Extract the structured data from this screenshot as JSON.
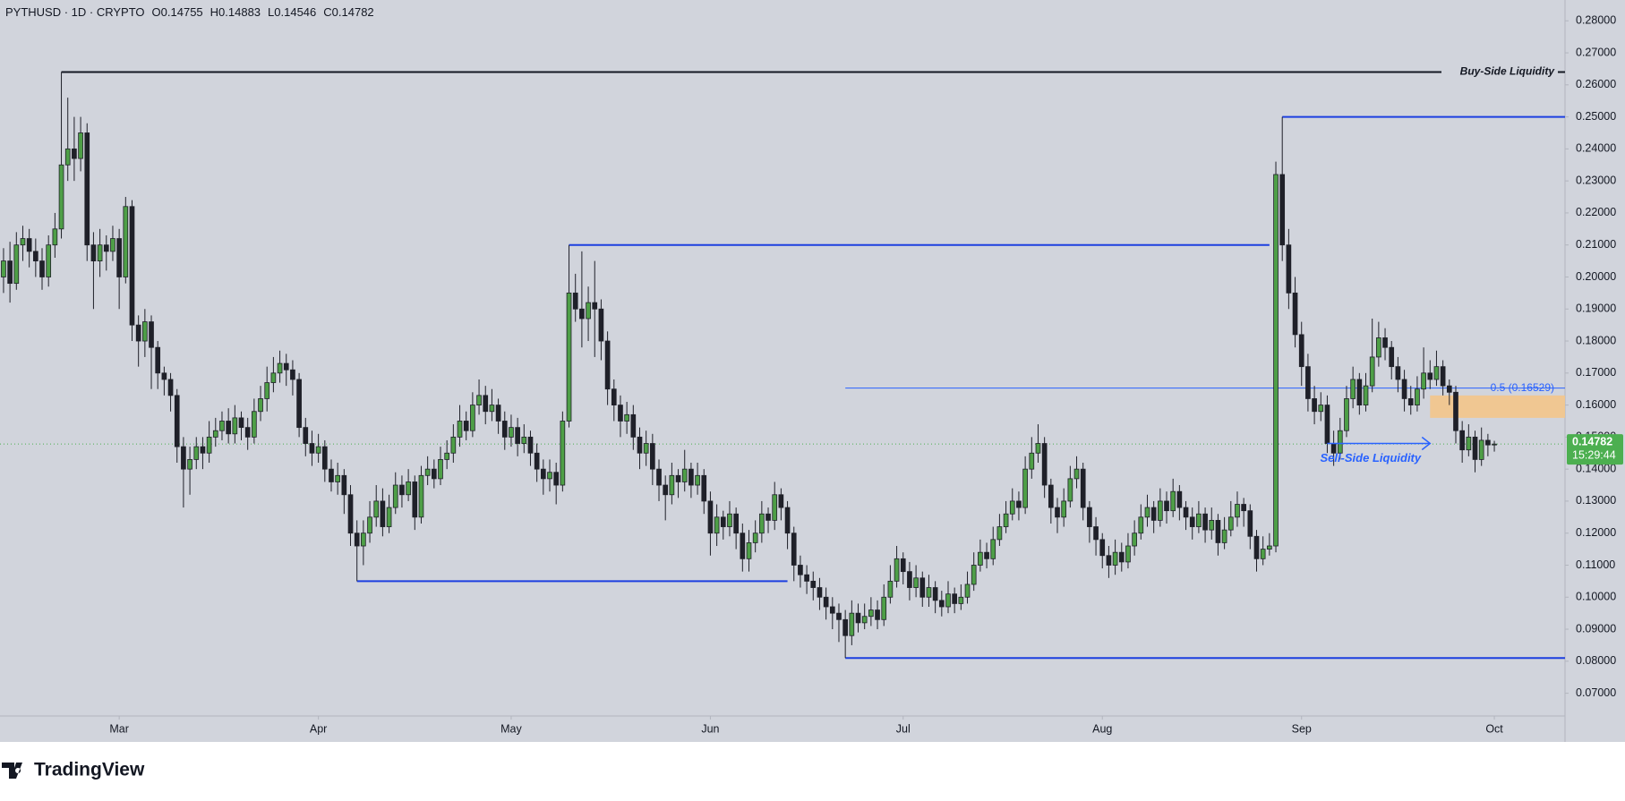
{
  "chart_data": {
    "type": "candlestick",
    "symbol_line": "PYTHUSD · 1D · CRYPTO",
    "ohlc_labels": [
      "O0.14755",
      "H0.14883",
      "L0.14546",
      "C0.14782"
    ],
    "up_color": "#4e9f47",
    "down_color": "#1f2029",
    "xlim": [
      -0.55,
      243
    ],
    "ylim": [
      0.0629,
      0.2865
    ],
    "xticks": [
      {
        "value": 18,
        "label": "Mar"
      },
      {
        "value": 49,
        "label": "Apr"
      },
      {
        "value": 79,
        "label": "May"
      },
      {
        "value": 110,
        "label": "Jun"
      },
      {
        "value": 140,
        "label": "Jul"
      },
      {
        "value": 171,
        "label": "Aug"
      },
      {
        "value": 202,
        "label": "Sep"
      },
      {
        "value": 232,
        "label": "Oct"
      }
    ],
    "yticks": [
      {
        "value": 0.07,
        "label": "0.07000"
      },
      {
        "value": 0.08,
        "label": "0.08000"
      },
      {
        "value": 0.09,
        "label": "0.09000"
      },
      {
        "value": 0.1,
        "label": "0.10000"
      },
      {
        "value": 0.11,
        "label": "0.11000"
      },
      {
        "value": 0.12,
        "label": "0.12000"
      },
      {
        "value": 0.13,
        "label": "0.13000"
      },
      {
        "value": 0.14,
        "label": "0.14000"
      },
      {
        "value": 0.15,
        "label": "0.15000"
      },
      {
        "value": 0.16,
        "label": "0.16000"
      },
      {
        "value": 0.17,
        "label": "0.17000"
      },
      {
        "value": 0.18,
        "label": "0.18000"
      },
      {
        "value": 0.19,
        "label": "0.19000"
      },
      {
        "value": 0.2,
        "label": "0.20000"
      },
      {
        "value": 0.21,
        "label": "0.21000"
      },
      {
        "value": 0.22,
        "label": "0.22000"
      },
      {
        "value": 0.23,
        "label": "0.23000"
      },
      {
        "value": 0.24,
        "label": "0.24000"
      },
      {
        "value": 0.25,
        "label": "0.25000"
      },
      {
        "value": 0.26,
        "label": "0.26000"
      },
      {
        "value": 0.27,
        "label": "0.27000"
      },
      {
        "value": 0.28,
        "label": "0.28000"
      }
    ],
    "open": [
      0.2,
      0.205,
      0.198,
      0.21,
      0.212,
      0.208,
      0.205,
      0.2,
      0.21,
      0.215,
      0.235,
      0.24,
      0.237,
      0.245,
      0.21,
      0.205,
      0.21,
      0.208,
      0.212,
      0.2,
      0.222,
      0.185,
      0.18,
      0.186,
      0.178,
      0.17,
      0.168,
      0.163,
      0.147,
      0.14,
      0.143,
      0.147,
      0.145,
      0.15,
      0.152,
      0.155,
      0.151,
      0.156,
      0.153,
      0.15,
      0.158,
      0.162,
      0.167,
      0.17,
      0.173,
      0.171,
      0.168,
      0.153,
      0.148,
      0.145,
      0.147,
      0.14,
      0.136,
      0.138,
      0.132,
      0.12,
      0.116,
      0.12,
      0.125,
      0.13,
      0.122,
      0.128,
      0.135,
      0.132,
      0.136,
      0.125,
      0.138,
      0.14,
      0.137,
      0.143,
      0.145,
      0.15,
      0.155,
      0.152,
      0.16,
      0.163,
      0.158,
      0.16,
      0.155,
      0.15,
      0.153,
      0.148,
      0.15,
      0.145,
      0.14,
      0.137,
      0.139,
      0.135,
      0.155,
      0.195,
      0.19,
      0.187,
      0.192,
      0.19,
      0.18,
      0.165,
      0.16,
      0.155,
      0.157,
      0.15,
      0.145,
      0.148,
      0.14,
      0.135,
      0.132,
      0.138,
      0.136,
      0.14,
      0.135,
      0.138,
      0.13,
      0.12,
      0.125,
      0.122,
      0.126,
      0.12,
      0.112,
      0.117,
      0.12,
      0.126,
      0.124,
      0.132,
      0.128,
      0.12,
      0.11,
      0.107,
      0.105,
      0.103,
      0.1,
      0.097,
      0.095,
      0.093,
      0.088,
      0.095,
      0.092,
      0.094,
      0.096,
      0.093,
      0.1,
      0.105,
      0.112,
      0.108,
      0.103,
      0.106,
      0.1,
      0.103,
      0.099,
      0.097,
      0.101,
      0.098,
      0.1,
      0.104,
      0.11,
      0.114,
      0.112,
      0.118,
      0.122,
      0.126,
      0.13,
      0.128,
      0.14,
      0.145,
      0.148,
      0.135,
      0.128,
      0.125,
      0.13,
      0.137,
      0.14,
      0.128,
      0.122,
      0.118,
      0.113,
      0.11,
      0.114,
      0.111,
      0.116,
      0.12,
      0.125,
      0.128,
      0.124,
      0.13,
      0.127,
      0.133,
      0.128,
      0.125,
      0.122,
      0.126,
      0.121,
      0.124,
      0.117,
      0.121,
      0.125,
      0.129,
      0.127,
      0.119,
      0.112,
      0.115,
      0.116,
      0.232,
      0.21,
      0.195,
      0.182,
      0.172,
      0.162,
      0.158,
      0.16,
      0.148,
      0.145,
      0.152,
      0.162,
      0.168,
      0.16,
      0.166,
      0.175,
      0.181,
      0.178,
      0.172,
      0.168,
      0.162,
      0.16,
      0.165,
      0.17,
      0.168,
      0.172,
      0.166,
      0.164,
      0.152,
      0.146,
      0.15,
      0.143,
      0.149,
      0.14755
    ],
    "high": [
      0.209,
      0.211,
      0.214,
      0.216,
      0.215,
      0.212,
      0.209,
      0.213,
      0.22,
      0.264,
      0.256,
      0.25,
      0.25,
      0.248,
      0.214,
      0.215,
      0.213,
      0.216,
      0.215,
      0.225,
      0.224,
      0.188,
      0.19,
      0.188,
      0.18,
      0.172,
      0.17,
      0.165,
      0.15,
      0.147,
      0.15,
      0.15,
      0.155,
      0.156,
      0.158,
      0.159,
      0.16,
      0.158,
      0.156,
      0.162,
      0.166,
      0.172,
      0.175,
      0.177,
      0.176,
      0.174,
      0.17,
      0.156,
      0.152,
      0.151,
      0.149,
      0.143,
      0.142,
      0.14,
      0.135,
      0.124,
      0.124,
      0.13,
      0.135,
      0.134,
      0.132,
      0.139,
      0.138,
      0.14,
      0.138,
      0.141,
      0.144,
      0.143,
      0.147,
      0.149,
      0.154,
      0.16,
      0.158,
      0.164,
      0.168,
      0.166,
      0.165,
      0.162,
      0.158,
      0.157,
      0.156,
      0.154,
      0.152,
      0.148,
      0.143,
      0.143,
      0.142,
      0.158,
      0.21,
      0.201,
      0.208,
      0.197,
      0.205,
      0.193,
      0.183,
      0.168,
      0.163,
      0.161,
      0.16,
      0.153,
      0.152,
      0.151,
      0.143,
      0.138,
      0.142,
      0.14,
      0.146,
      0.142,
      0.142,
      0.14,
      0.133,
      0.129,
      0.127,
      0.13,
      0.128,
      0.123,
      0.121,
      0.124,
      0.13,
      0.128,
      0.136,
      0.134,
      0.13,
      0.122,
      0.113,
      0.11,
      0.108,
      0.106,
      0.103,
      0.1,
      0.098,
      0.096,
      0.099,
      0.098,
      0.098,
      0.1,
      0.099,
      0.104,
      0.11,
      0.116,
      0.114,
      0.111,
      0.11,
      0.108,
      0.107,
      0.105,
      0.102,
      0.105,
      0.103,
      0.104,
      0.108,
      0.114,
      0.118,
      0.117,
      0.122,
      0.126,
      0.13,
      0.134,
      0.133,
      0.144,
      0.15,
      0.154,
      0.15,
      0.137,
      0.131,
      0.134,
      0.141,
      0.144,
      0.142,
      0.13,
      0.125,
      0.12,
      0.116,
      0.118,
      0.117,
      0.12,
      0.124,
      0.129,
      0.132,
      0.13,
      0.134,
      0.133,
      0.137,
      0.135,
      0.13,
      0.128,
      0.13,
      0.128,
      0.128,
      0.126,
      0.125,
      0.13,
      0.133,
      0.131,
      0.129,
      0.121,
      0.119,
      0.12,
      0.236,
      0.25,
      0.215,
      0.2,
      0.186,
      0.176,
      0.166,
      0.164,
      0.163,
      0.152,
      0.156,
      0.166,
      0.172,
      0.17,
      0.17,
      0.187,
      0.186,
      0.184,
      0.18,
      0.175,
      0.171,
      0.166,
      0.169,
      0.178,
      0.174,
      0.177,
      0.174,
      0.168,
      0.166,
      0.155,
      0.154,
      0.152,
      0.153,
      0.151,
      0.14883
    ],
    "low": [
      0.195,
      0.192,
      0.196,
      0.205,
      0.203,
      0.2,
      0.196,
      0.197,
      0.206,
      0.212,
      0.23,
      0.23,
      0.233,
      0.205,
      0.19,
      0.2,
      0.202,
      0.205,
      0.19,
      0.198,
      0.18,
      0.172,
      0.175,
      0.165,
      0.165,
      0.163,
      0.158,
      0.142,
      0.128,
      0.132,
      0.14,
      0.14,
      0.142,
      0.147,
      0.149,
      0.148,
      0.148,
      0.149,
      0.146,
      0.148,
      0.155,
      0.158,
      0.164,
      0.167,
      0.166,
      0.163,
      0.15,
      0.144,
      0.141,
      0.142,
      0.136,
      0.133,
      0.132,
      0.126,
      0.116,
      0.105,
      0.11,
      0.117,
      0.122,
      0.119,
      0.12,
      0.126,
      0.128,
      0.13,
      0.121,
      0.123,
      0.135,
      0.134,
      0.135,
      0.14,
      0.142,
      0.147,
      0.149,
      0.15,
      0.157,
      0.154,
      0.155,
      0.151,
      0.146,
      0.147,
      0.144,
      0.145,
      0.141,
      0.136,
      0.132,
      0.133,
      0.129,
      0.133,
      0.153,
      0.186,
      0.178,
      0.18,
      0.175,
      0.174,
      0.16,
      0.155,
      0.15,
      0.151,
      0.146,
      0.14,
      0.141,
      0.135,
      0.13,
      0.124,
      0.129,
      0.131,
      0.133,
      0.131,
      0.132,
      0.126,
      0.113,
      0.116,
      0.118,
      0.119,
      0.115,
      0.108,
      0.108,
      0.114,
      0.117,
      0.12,
      0.121,
      0.124,
      0.115,
      0.105,
      0.103,
      0.101,
      0.099,
      0.096,
      0.093,
      0.09,
      0.086,
      0.081,
      0.085,
      0.089,
      0.09,
      0.091,
      0.09,
      0.091,
      0.098,
      0.103,
      0.104,
      0.099,
      0.1,
      0.097,
      0.097,
      0.095,
      0.094,
      0.095,
      0.095,
      0.096,
      0.098,
      0.102,
      0.108,
      0.109,
      0.11,
      0.116,
      0.12,
      0.124,
      0.124,
      0.126,
      0.137,
      0.142,
      0.131,
      0.123,
      0.12,
      0.122,
      0.128,
      0.134,
      0.124,
      0.117,
      0.113,
      0.109,
      0.106,
      0.107,
      0.108,
      0.109,
      0.113,
      0.118,
      0.122,
      0.12,
      0.122,
      0.123,
      0.125,
      0.124,
      0.121,
      0.118,
      0.12,
      0.117,
      0.118,
      0.113,
      0.115,
      0.119,
      0.122,
      0.122,
      0.115,
      0.108,
      0.11,
      0.113,
      0.114,
      0.205,
      0.19,
      0.178,
      0.166,
      0.158,
      0.154,
      0.155,
      0.145,
      0.141,
      0.143,
      0.15,
      0.159,
      0.157,
      0.158,
      0.164,
      0.172,
      0.174,
      0.168,
      0.164,
      0.158,
      0.157,
      0.158,
      0.162,
      0.165,
      0.166,
      0.163,
      0.16,
      0.148,
      0.142,
      0.144,
      0.139,
      0.141,
      0.144,
      0.14546
    ],
    "close": [
      0.205,
      0.198,
      0.21,
      0.212,
      0.208,
      0.205,
      0.2,
      0.21,
      0.215,
      0.235,
      0.24,
      0.237,
      0.245,
      0.21,
      0.205,
      0.21,
      0.208,
      0.212,
      0.2,
      0.222,
      0.185,
      0.18,
      0.186,
      0.178,
      0.17,
      0.168,
      0.163,
      0.147,
      0.14,
      0.143,
      0.147,
      0.145,
      0.15,
      0.152,
      0.155,
      0.151,
      0.156,
      0.153,
      0.15,
      0.158,
      0.162,
      0.167,
      0.17,
      0.173,
      0.171,
      0.168,
      0.153,
      0.148,
      0.145,
      0.147,
      0.14,
      0.136,
      0.138,
      0.132,
      0.12,
      0.116,
      0.12,
      0.125,
      0.13,
      0.122,
      0.128,
      0.135,
      0.132,
      0.136,
      0.125,
      0.138,
      0.14,
      0.137,
      0.143,
      0.145,
      0.15,
      0.155,
      0.152,
      0.16,
      0.163,
      0.158,
      0.16,
      0.155,
      0.15,
      0.153,
      0.148,
      0.15,
      0.145,
      0.14,
      0.137,
      0.139,
      0.135,
      0.155,
      0.195,
      0.19,
      0.187,
      0.192,
      0.19,
      0.18,
      0.165,
      0.16,
      0.155,
      0.157,
      0.15,
      0.145,
      0.148,
      0.14,
      0.135,
      0.132,
      0.138,
      0.136,
      0.14,
      0.135,
      0.138,
      0.13,
      0.12,
      0.125,
      0.122,
      0.126,
      0.12,
      0.112,
      0.117,
      0.12,
      0.126,
      0.124,
      0.132,
      0.128,
      0.12,
      0.11,
      0.107,
      0.105,
      0.103,
      0.1,
      0.097,
      0.095,
      0.093,
      0.088,
      0.095,
      0.092,
      0.094,
      0.096,
      0.093,
      0.1,
      0.105,
      0.112,
      0.108,
      0.103,
      0.106,
      0.1,
      0.103,
      0.099,
      0.097,
      0.101,
      0.098,
      0.1,
      0.104,
      0.11,
      0.114,
      0.112,
      0.118,
      0.122,
      0.126,
      0.13,
      0.128,
      0.14,
      0.145,
      0.148,
      0.135,
      0.128,
      0.125,
      0.13,
      0.137,
      0.14,
      0.128,
      0.122,
      0.118,
      0.113,
      0.11,
      0.114,
      0.111,
      0.116,
      0.12,
      0.125,
      0.128,
      0.124,
      0.13,
      0.127,
      0.133,
      0.128,
      0.125,
      0.122,
      0.126,
      0.121,
      0.124,
      0.117,
      0.121,
      0.125,
      0.129,
      0.127,
      0.119,
      0.112,
      0.115,
      0.116,
      0.232,
      0.21,
      0.195,
      0.182,
      0.172,
      0.162,
      0.158,
      0.16,
      0.148,
      0.145,
      0.152,
      0.162,
      0.168,
      0.16,
      0.166,
      0.175,
      0.181,
      0.178,
      0.172,
      0.168,
      0.162,
      0.16,
      0.165,
      0.17,
      0.168,
      0.172,
      0.166,
      0.164,
      0.152,
      0.146,
      0.15,
      0.143,
      0.149,
      0.14755,
      0.14782
    ],
    "levels": [
      {
        "value": 0.264,
        "start": 9,
        "color": "#131722",
        "width": 2,
        "label": "Buy-Side Liquidity"
      },
      {
        "value": 0.25,
        "start": 199,
        "color": "#1c3fe0",
        "width": 2
      },
      {
        "value": 0.21,
        "start": 88,
        "end": 197,
        "color": "#1c3fe0",
        "width": 2
      },
      {
        "value": 0.105,
        "start": 55,
        "end": 122,
        "color": "#1c3fe0",
        "width": 2
      },
      {
        "value": 0.081,
        "start": 131,
        "color": "#1c3fe0",
        "width": 2
      },
      {
        "value": 0.16529,
        "start": 131,
        "color": "#2962ff",
        "width": 1,
        "label": "0.5 (0.16529)"
      }
    ],
    "zone": {
      "low": 0.156,
      "high": 0.163,
      "start": 222,
      "color": "#f3c58a"
    },
    "arrow": {
      "value": 0.148,
      "start": 206,
      "end": 222,
      "color": "#2962ff",
      "label": "Sell-Side Liquidity"
    },
    "last_price": {
      "label": "0.14782",
      "countdown": "15:29:44",
      "color": "#4caf50"
    }
  },
  "brand": "TradingView"
}
